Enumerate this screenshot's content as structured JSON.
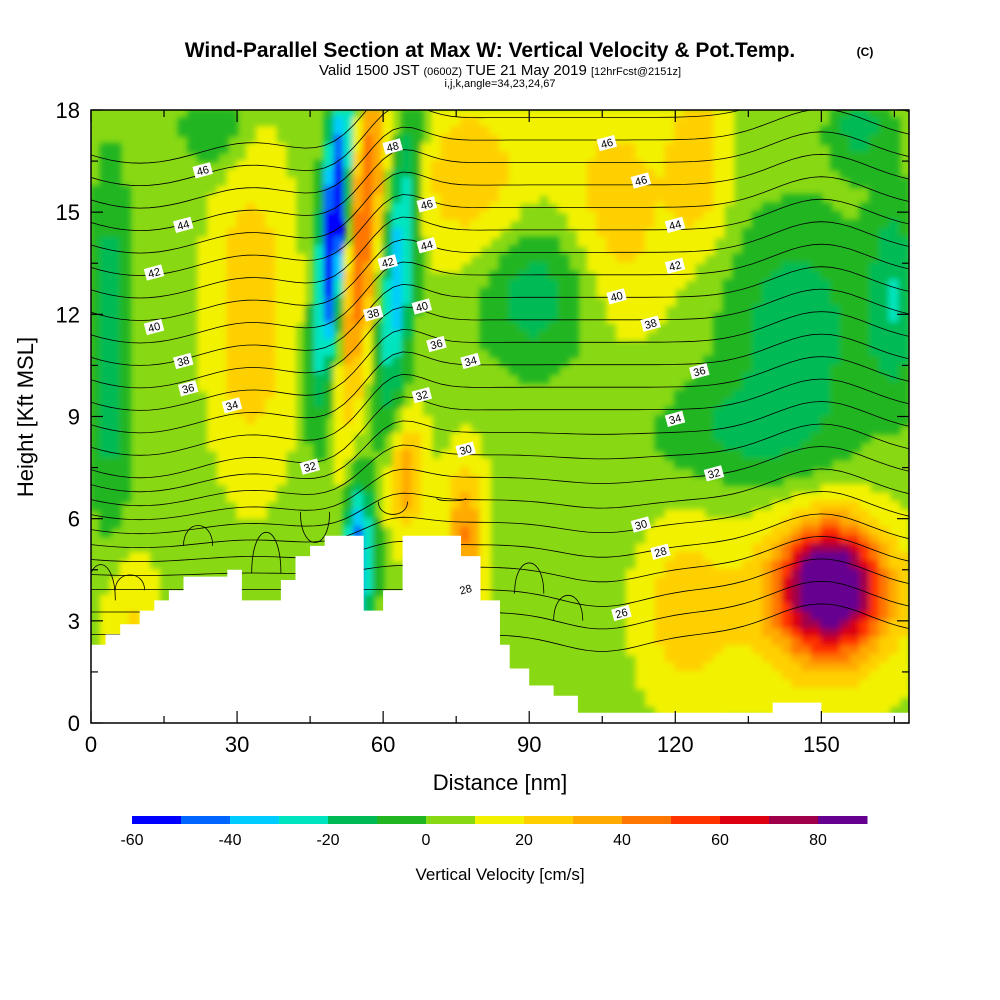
{
  "title": {
    "main": "Wind-Parallel Section at Max W: Vertical Velocity & Pot.Temp.",
    "copyright": "(C)",
    "valid_prefix": "Valid 1500 JST",
    "valid_utc": "(0600Z)",
    "valid_date": "TUE 21 May 2019",
    "forecast": "[12hrFcst@2151z]",
    "indices": "i,j,k,angle=34,23,24,67"
  },
  "chart_data": {
    "type": "heatmap",
    "xlabel": "Distance [nm]",
    "ylabel": "Height [Kft MSL]",
    "xlim": [
      0,
      168
    ],
    "ylim": [
      0,
      18
    ],
    "x_ticks": [
      "0",
      "30",
      "60",
      "90",
      "120",
      "150"
    ],
    "x_tick_values": [
      0,
      30,
      60,
      90,
      120,
      150
    ],
    "y_ticks": [
      "0",
      "3",
      "6",
      "9",
      "12",
      "15",
      "18"
    ],
    "y_tick_values": [
      0,
      3,
      6,
      9,
      12,
      15,
      18
    ],
    "colorbar": {
      "label": "Vertical Velocity [cm/s]",
      "range": [
        -60,
        90
      ],
      "step": 10,
      "tick_labels": [
        "-60",
        "-40",
        "-20",
        "0",
        "20",
        "40",
        "60",
        "80"
      ],
      "tick_values": [
        -60,
        -40,
        -20,
        0,
        20,
        40,
        60,
        80
      ],
      "colors": [
        "#0000ff",
        "#0066ff",
        "#00ccff",
        "#00e5c0",
        "#00bb55",
        "#22b522",
        "#88d814",
        "#f2f200",
        "#ffd000",
        "#ffaa00",
        "#ff7700",
        "#ff3300",
        "#dd0011",
        "#a0004a",
        "#660090"
      ]
    },
    "terrain_kft": [
      [
        0,
        2.3
      ],
      [
        3,
        2.6
      ],
      [
        6,
        2.9
      ],
      [
        10,
        3.3
      ],
      [
        13,
        3.6
      ],
      [
        16,
        3.9
      ],
      [
        19,
        4.3
      ],
      [
        28,
        4.5
      ],
      [
        31,
        3.6
      ],
      [
        36,
        3.6
      ],
      [
        39,
        4.2
      ],
      [
        42,
        4.9
      ],
      [
        45,
        5.2
      ],
      [
        48,
        5.5
      ],
      [
        52,
        5.5
      ],
      [
        56,
        3.3
      ],
      [
        60,
        3.9
      ],
      [
        64,
        5.5
      ],
      [
        72,
        5.5
      ],
      [
        76,
        4.9
      ],
      [
        80,
        3.6
      ],
      [
        84,
        2.3
      ],
      [
        86,
        1.6
      ],
      [
        90,
        1.1
      ],
      [
        95,
        0.8
      ],
      [
        100,
        0.3
      ],
      [
        138,
        0.3
      ],
      [
        140,
        0.6
      ],
      [
        146,
        0.6
      ],
      [
        150,
        0.3
      ],
      [
        168,
        0.3
      ]
    ],
    "wmax_location": {
      "distance_nm": 151,
      "height_kft": 4.0,
      "value_cms": 85
    },
    "theta_contours": [
      {
        "label": "26",
        "pos": [
          109,
          3.2
        ]
      },
      {
        "label": "28",
        "pos": [
          77,
          3.9
        ]
      },
      {
        "label": "28",
        "pos": [
          117,
          5.0
        ]
      },
      {
        "label": "30",
        "pos": [
          77,
          8.0
        ]
      },
      {
        "label": "30",
        "pos": [
          113,
          5.8
        ]
      },
      {
        "label": "32",
        "pos": [
          45,
          7.5
        ]
      },
      {
        "label": "32",
        "pos": [
          68,
          9.6
        ]
      },
      {
        "label": "32",
        "pos": [
          128,
          7.3
        ]
      },
      {
        "label": "34",
        "pos": [
          29,
          9.3
        ]
      },
      {
        "label": "34",
        "pos": [
          78,
          10.6
        ]
      },
      {
        "label": "34",
        "pos": [
          120,
          8.9
        ]
      },
      {
        "label": "36",
        "pos": [
          20,
          9.8
        ]
      },
      {
        "label": "36",
        "pos": [
          71,
          11.1
        ]
      },
      {
        "label": "36",
        "pos": [
          125,
          10.3
        ]
      },
      {
        "label": "38",
        "pos": [
          19,
          10.6
        ]
      },
      {
        "label": "38",
        "pos": [
          58,
          12.0
        ]
      },
      {
        "label": "38",
        "pos": [
          115,
          11.7
        ]
      },
      {
        "label": "40",
        "pos": [
          13,
          11.6
        ]
      },
      {
        "label": "40",
        "pos": [
          68,
          12.2
        ]
      },
      {
        "label": "40",
        "pos": [
          108,
          12.5
        ]
      },
      {
        "label": "42",
        "pos": [
          13,
          13.2
        ]
      },
      {
        "label": "42",
        "pos": [
          61,
          13.5
        ]
      },
      {
        "label": "42",
        "pos": [
          120,
          13.4
        ]
      },
      {
        "label": "44",
        "pos": [
          19,
          14.6
        ]
      },
      {
        "label": "44",
        "pos": [
          69,
          14.0
        ]
      },
      {
        "label": "44",
        "pos": [
          120,
          14.6
        ]
      },
      {
        "label": "46",
        "pos": [
          23,
          16.2
        ]
      },
      {
        "label": "46",
        "pos": [
          69,
          15.2
        ]
      },
      {
        "label": "46",
        "pos": [
          113,
          15.9
        ]
      },
      {
        "label": "46",
        "pos": [
          106,
          17.0
        ]
      },
      {
        "label": "48",
        "pos": [
          62,
          16.9
        ]
      }
    ]
  }
}
